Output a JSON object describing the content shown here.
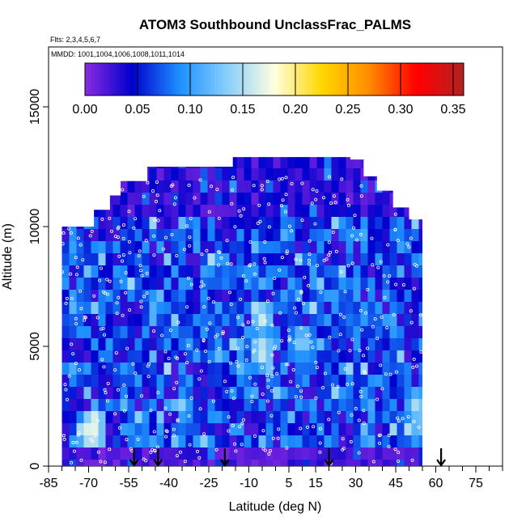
{
  "chart_data": {
    "type": "heatmap",
    "title": "ATOM3 Southbound UnclassFrac_PALMS",
    "subtitle_flights": "Flts: 2,3,4,5,6,7",
    "subtitle_dates": "MMDD: 1001,1004,1006,1008,1011,1014",
    "xlabel": "Latitude (deg N)",
    "ylabel": "Altitude (m)",
    "xlim": [
      -85,
      85
    ],
    "ylim": [
      0,
      17500
    ],
    "x_ticks": [
      -85,
      -70,
      -55,
      -40,
      -25,
      -10,
      5,
      15,
      30,
      45,
      60,
      75
    ],
    "x_tick_labels": [
      "-85",
      "-70",
      "-55",
      "-40",
      "-25",
      "-10",
      "5",
      "15",
      "30",
      "45",
      "60",
      "75"
    ],
    "y_ticks": [
      0,
      5000,
      10000,
      15000
    ],
    "y_tick_labels": [
      "0",
      "5000",
      "10000",
      "15000"
    ],
    "colorbar": {
      "min": 0.0,
      "max": 0.36,
      "ticks": [
        0.0,
        0.05,
        0.1,
        0.15,
        0.2,
        0.25,
        0.3,
        0.35
      ],
      "tick_labels": [
        "0.00",
        "0.05",
        "0.10",
        "0.15",
        "0.20",
        "0.25",
        "0.30",
        "0.35"
      ],
      "colors": [
        "#8a2be2",
        "#0000cd",
        "#1e90ff",
        "#87cefa",
        "#ffffe0",
        "#ffd700",
        "#ff8c00",
        "#ff0000",
        "#b22222"
      ]
    },
    "profile_markers_lat": [
      -53,
      -44,
      -19,
      20,
      62
    ],
    "data_extent": {
      "lat_min": -80,
      "lat_max": 55,
      "top_altitude_by_lat": [
        {
          "lat": -80,
          "alt": 10000
        },
        {
          "lat": -68,
          "alt": 10700
        },
        {
          "lat": -62,
          "alt": 11300
        },
        {
          "lat": -58,
          "alt": 11900
        },
        {
          "lat": -48,
          "alt": 12500
        },
        {
          "lat": -20,
          "alt": 12500
        },
        {
          "lat": -16,
          "alt": 12900
        },
        {
          "lat": 28,
          "alt": 12800
        },
        {
          "lat": 33,
          "alt": 12100
        },
        {
          "lat": 38,
          "alt": 11500
        },
        {
          "lat": 44,
          "alt": 10800
        },
        {
          "lat": 50,
          "alt": 10300
        },
        {
          "lat": 55,
          "alt": 9900
        }
      ]
    },
    "high_value_regions": [
      {
        "lat": -68,
        "alt": 1800,
        "value": 0.19
      },
      {
        "lat": -69,
        "alt": 1400,
        "value": 0.2
      },
      {
        "lat": -5,
        "alt": 6200,
        "value": 0.17
      },
      {
        "lat": -5,
        "alt": 4800,
        "value": 0.18
      },
      {
        "lat": 10,
        "alt": 5200,
        "value": 0.15
      },
      {
        "lat": 53,
        "alt": 2500,
        "value": 0.16
      },
      {
        "lat": 54,
        "alt": 1800,
        "value": 0.15
      }
    ]
  }
}
